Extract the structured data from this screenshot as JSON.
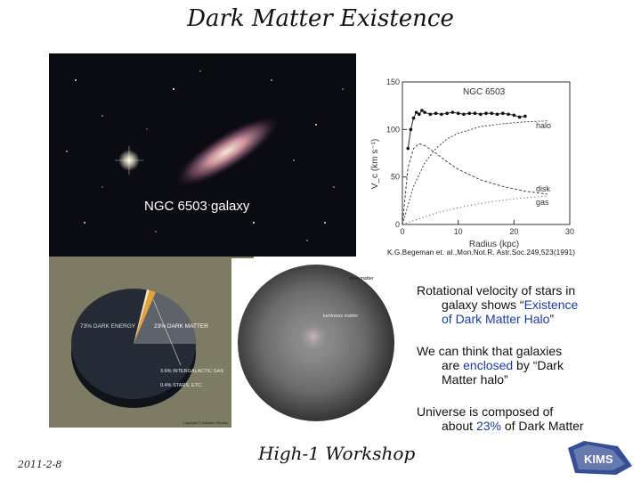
{
  "slide": {
    "title": "Dark Matter Existence",
    "date": "2011-2-8",
    "footer": "High-1 Workshop"
  },
  "galaxy_photo": {
    "label": "NGC 6503 galaxy"
  },
  "rotation_curve": {
    "title": "NGC 6503",
    "xlabel": "Radius (kpc)",
    "ylabel": "V_c (km s⁻¹)",
    "citation": "K.G.Begeman et. al.,Mon.Not.R. Astr.Soc.249,523(1991)",
    "curve_labels": {
      "halo": "halo",
      "disk": "disk",
      "gas": "gas"
    }
  },
  "chart_data": {
    "type": "line",
    "title": "NGC 6503",
    "xlabel": "Radius (kpc)",
    "ylabel": "V_c (km s⁻¹)",
    "xlim": [
      0,
      30
    ],
    "ylim": [
      0,
      150
    ],
    "x_ticks": [
      0,
      10,
      20,
      30
    ],
    "y_ticks": [
      0,
      50,
      100,
      150
    ],
    "observed": {
      "x": [
        1,
        1.5,
        2,
        2.5,
        3,
        3.5,
        4,
        5,
        6,
        7,
        8,
        9,
        10,
        11,
        12,
        13,
        14,
        15,
        16,
        17,
        18,
        19,
        20,
        21,
        22
      ],
      "y": [
        80,
        100,
        112,
        118,
        116,
        120,
        118,
        116,
        117,
        116,
        117,
        118,
        117,
        116,
        117,
        117,
        116,
        117,
        117,
        116,
        117,
        116,
        115,
        113,
        114
      ]
    },
    "series": [
      {
        "name": "halo",
        "x": [
          0,
          2,
          4,
          6,
          8,
          10,
          14,
          18,
          22,
          26
        ],
        "y": [
          0,
          40,
          65,
          80,
          90,
          96,
          103,
          106,
          108,
          109
        ]
      },
      {
        "name": "disk",
        "x": [
          0,
          1,
          2,
          3,
          4,
          6,
          8,
          10,
          14,
          18,
          22,
          26
        ],
        "y": [
          0,
          60,
          80,
          85,
          83,
          75,
          66,
          58,
          47,
          40,
          35,
          32
        ]
      },
      {
        "name": "gas",
        "x": [
          0,
          2,
          4,
          6,
          8,
          12,
          16,
          20,
          26
        ],
        "y": [
          0,
          4,
          8,
          12,
          15,
          20,
          24,
          27,
          30
        ]
      }
    ]
  },
  "pie_photo": {
    "labels": {
      "dark_energy": "73% DARK ENERGY",
      "dark_matter": "23% DARK MATTER",
      "free_h_he": "3.6% INTERGALACTIC GAS",
      "stars": "0.4% STARS, ETC."
    },
    "credit": "Copyright © Addison Wesley",
    "colors": {
      "dark_energy": "#232a35",
      "dark_matter": "#5f636b",
      "gas": "#e6a23a",
      "stars": "#f3e6b8"
    }
  },
  "halo_photo": {
    "labels": {
      "dark_matter": "dark matter",
      "luminous": "luminous matter"
    }
  },
  "bullets": [
    {
      "line1": "Rotational velocity of stars in",
      "line2_pre": "galaxy shows “",
      "line2_hl": "Existence",
      "line3_hl": "of Dark Matter Halo",
      "line3_post": "”"
    },
    {
      "line1": "We can think that galaxies",
      "line2_pre": "are ",
      "line2_hl": "enclosed",
      "line2_post": " by “Dark",
      "line3_plain": "Matter halo”"
    },
    {
      "line1": "Universe is composed of",
      "line2_pre": "about ",
      "line2_hl": "23%",
      "line2_post": " of Dark Matter"
    }
  ],
  "logo": {
    "text": "KIMS"
  }
}
